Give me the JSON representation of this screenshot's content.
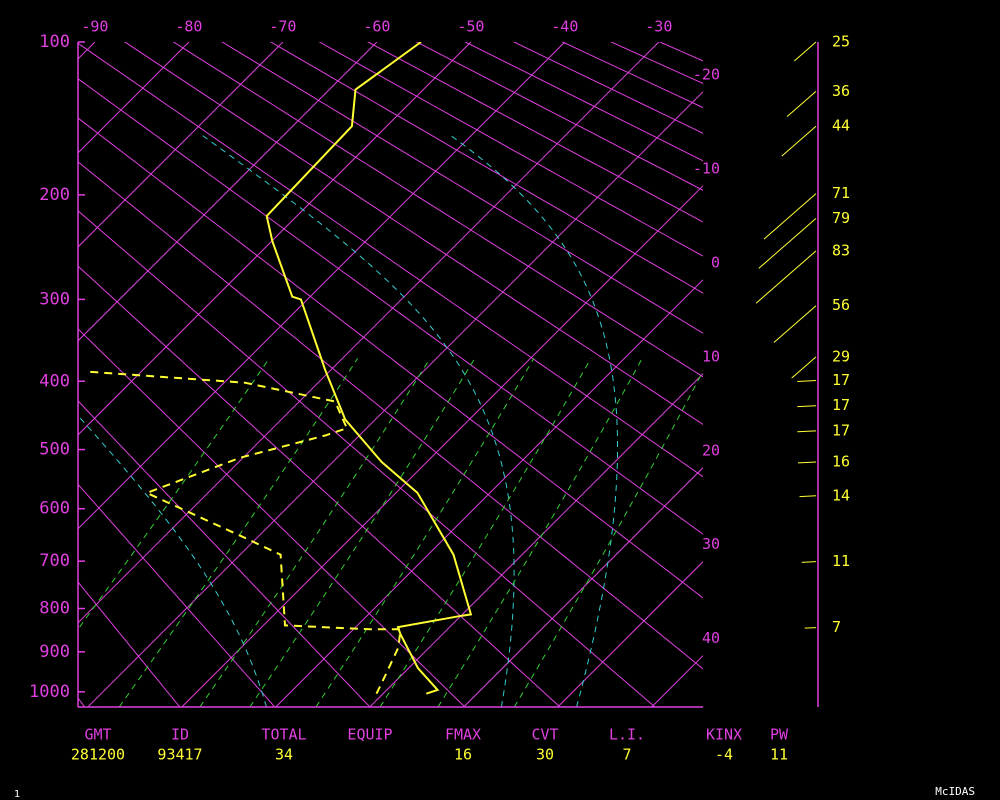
{
  "chart_data": {
    "type": "skew-t",
    "ylim": [
      1040,
      100
    ],
    "yticks": [
      100,
      200,
      300,
      400,
      500,
      600,
      700,
      800,
      900,
      1000
    ],
    "xlim": [
      -91.8,
      -25.3
    ],
    "xticks": [
      -90,
      -80,
      -70,
      -60,
      -50,
      -40,
      -30
    ],
    "isotherm_ticks": [
      -20,
      -10,
      0,
      10,
      20,
      30,
      40
    ],
    "temperature": {
      "color": "#ffff33",
      "pressure": [
        100,
        126,
        149,
        218,
        241,
        297,
        300,
        385,
        454,
        520,
        572,
        687,
        813,
        816,
        842,
        858,
        940,
        995,
        1005
      ],
      "values": [
        -55.3,
        -57.2,
        -53.7,
        -53.2,
        -49.9,
        -41.9,
        -40.7,
        -30.6,
        -23.2,
        -14.8,
        -7.7,
        2.7,
        10.9,
        10.1,
        4.5,
        5.5,
        11,
        15.4,
        14.6
      ]
    },
    "dewpoint": {
      "color": "#ffff33",
      "pressure": [
        1005,
        963,
        889,
        847,
        847,
        838,
        687,
        654,
        572,
        513,
        478,
        467,
        428,
        402,
        387
      ],
      "values": [
        9.3,
        8.4,
        6.7,
        5,
        1.8,
        -7.7,
        -15.7,
        -21.3,
        -36.5,
        -30.3,
        -23.6,
        -22.1,
        -26.2,
        -37.8,
        -56
      ]
    },
    "wind": {
      "color": "#ffff33",
      "pressure": [
        100,
        127,
        149,
        199,
        220,
        250,
        307,
        368,
        399,
        434,
        471,
        520,
        577,
        701,
        843
      ],
      "values": [
        25,
        36,
        44,
        71,
        79,
        83,
        56,
        29,
        17,
        17,
        17,
        16,
        14,
        11,
        7
      ]
    }
  },
  "stats": {
    "labels": [
      "GMT",
      "ID",
      "TOTAL",
      "EQUIP",
      "FMAX",
      "CVT",
      "L.I.",
      "KINX",
      "PW"
    ],
    "values": [
      "281200",
      "93417",
      34,
      null,
      16,
      30,
      7,
      -4,
      11
    ]
  },
  "footer": {
    "left": "1",
    "right": "McIDAS"
  }
}
